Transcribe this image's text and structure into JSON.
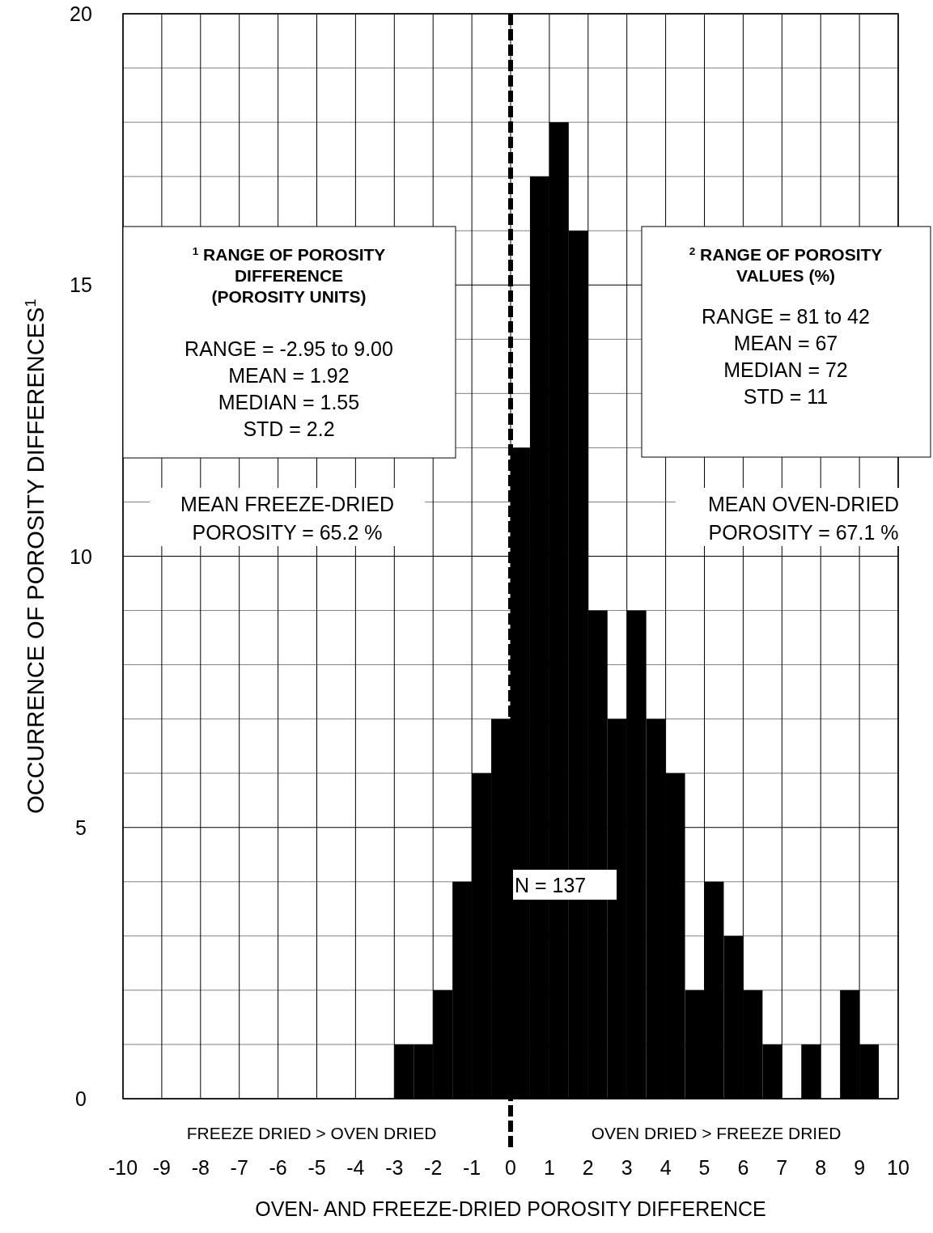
{
  "chart_data": {
    "type": "histogram",
    "xlabel": "OVEN- AND FREEZE-DRIED POROSITY DIFFERENCE",
    "ylabel": "OCCURRENCE OF POROSITY DIFFERENCES$^{1}$",
    "bins": [
      -3,
      -2.5,
      -2,
      -1.5,
      -1,
      -0.5,
      0,
      0.5,
      1,
      1.5,
      2,
      2.5,
      3,
      3.5,
      4,
      4.5,
      5,
      5.5,
      6,
      6.5,
      7,
      7.5,
      8,
      8.5,
      9,
      9.5
    ],
    "values": [
      1,
      1,
      2,
      4,
      6,
      7,
      12,
      17,
      18,
      16,
      9,
      7,
      9,
      7,
      6,
      2,
      4,
      3,
      2,
      1,
      0,
      1,
      0,
      2,
      1
    ],
    "color": "#000000",
    "xlim": [
      -10,
      10
    ],
    "xticks": [
      -10,
      -9,
      -8,
      -7,
      -6,
      -5,
      -4,
      -3,
      -2,
      -1,
      0,
      1,
      2,
      3,
      4,
      5,
      6,
      7,
      8,
      9,
      10
    ],
    "ylim": [
      0,
      20
    ],
    "yticks": [
      0,
      {
        "value": 1,
        "label": null
      },
      {
        "value": 2,
        "label": null
      },
      {
        "value": 3,
        "label": null
      },
      {
        "value": 4,
        "label": null
      },
      5,
      {
        "value": 6,
        "label": null
      },
      {
        "value": 7,
        "label": null
      },
      {
        "value": 8,
        "label": null
      },
      {
        "value": 9,
        "label": null
      },
      10,
      {
        "value": 11,
        "label": null
      },
      {
        "value": 12,
        "label": null
      },
      {
        "value": 13,
        "label": null
      },
      {
        "value": 14,
        "label": null
      },
      15,
      {
        "value": 16,
        "label": null
      },
      {
        "value": 17,
        "label": null
      },
      {
        "value": 18,
        "label": null
      },
      {
        "value": 19,
        "label": null
      },
      20
    ],
    "grid": true,
    "ref_lines": [
      {
        "axis": "x",
        "value": 0,
        "color": "#000000",
        "line_style": "dashed"
      }
    ],
    "annotations": [
      "$^{1}$ RANGE OF POROSITY\nDIFFERENCE\n(POROSITY UNITS)",
      "RANGE = -2.95 to 9.00\nMEAN = 1.92\nMEDIAN = 1.55\nSTD = 2.2",
      "$^{2}$ RANGE OF POROSITY\nVALUES (%)",
      "RANGE = 81 to 42\nMEAN = 67\nMEDIAN = 72\nSTD = 11",
      "MEAN FREEZE-DRIED\nPOROSITY = 65.2 %",
      "MEAN OVEN-DRIED\nPOROSITY = 67.1 %",
      "N  = 137",
      "FREEZE DRIED > OVEN DRIED",
      "OVEN DRIED > FREEZE DRIED"
    ]
  }
}
